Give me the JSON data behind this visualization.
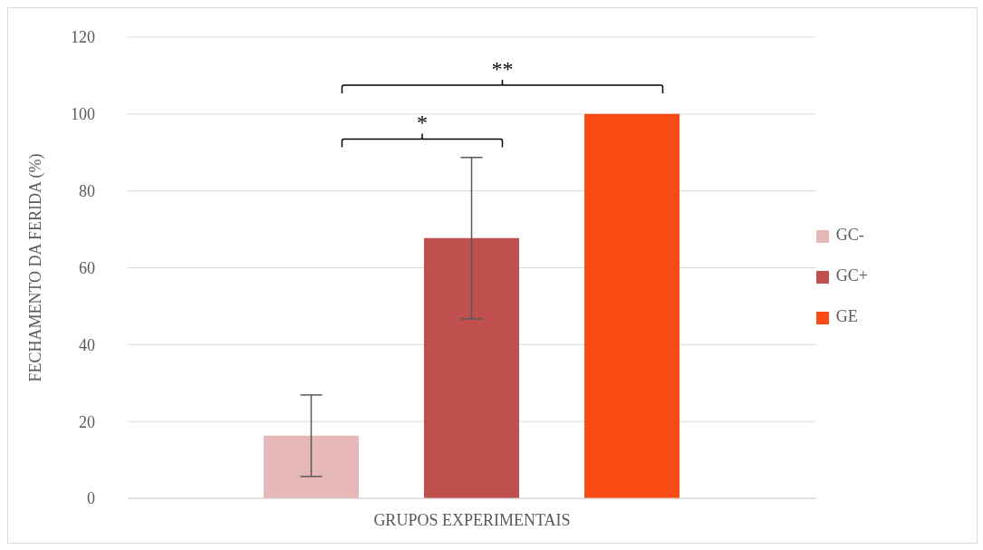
{
  "chart_data": {
    "type": "bar",
    "xlabel": "GRUPOS EXPERIMENTAIS",
    "ylabel": "FECHAMENTO DA FERIDA (%)",
    "categories": [
      null
    ],
    "series": [
      {
        "name": "GC-",
        "color": "#e6b8b7",
        "values": [
          16.3
        ],
        "errors": [
          10.6
        ]
      },
      {
        "name": "GC+",
        "color": "#c0504d",
        "values": [
          67.7
        ],
        "errors": [
          21
        ]
      },
      {
        "name": "GE",
        "color": "#f84c14",
        "values": [
          100
        ],
        "errors": [
          0
        ]
      }
    ],
    "ylim": [
      0,
      120
    ],
    "yticks": [
      0,
      20,
      40,
      60,
      80,
      100,
      120
    ],
    "grid": "y",
    "legend": "right",
    "annotations": [
      "*",
      "**"
    ]
  }
}
